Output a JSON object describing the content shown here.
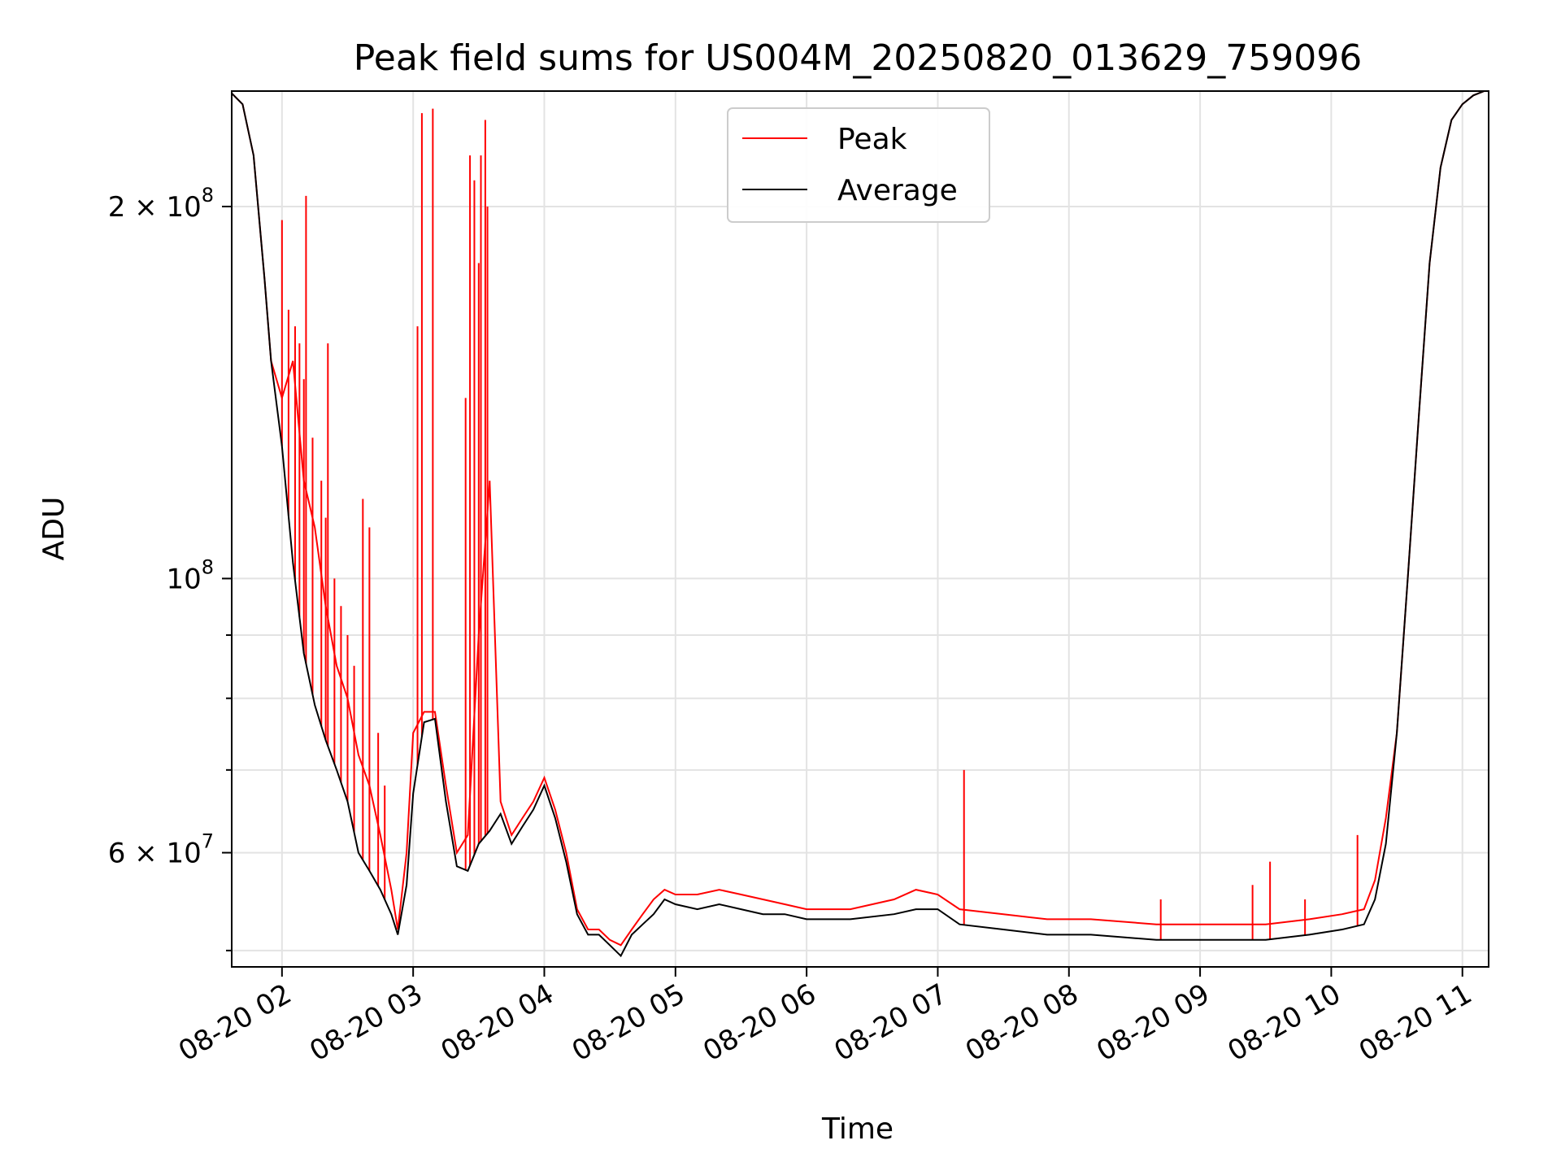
{
  "chart_data": {
    "type": "line",
    "title": "Peak field sums for US004M_20250820_013629_759096",
    "xlabel": "Time",
    "ylabel": "ADU",
    "y_scale": "log",
    "ylim": [
      48500000,
      248000000
    ],
    "xlim": [
      "2025-08-20 01:37",
      "2025-08-20 11:12"
    ],
    "grid": true,
    "legend_position": "upper center",
    "x_ticks": [
      {
        "value": "2025-08-20 02:00",
        "label": "08-20 02"
      },
      {
        "value": "2025-08-20 03:00",
        "label": "08-20 03"
      },
      {
        "value": "2025-08-20 04:00",
        "label": "08-20 04"
      },
      {
        "value": "2025-08-20 05:00",
        "label": "08-20 05"
      },
      {
        "value": "2025-08-20 06:00",
        "label": "08-20 06"
      },
      {
        "value": "2025-08-20 07:00",
        "label": "08-20 07"
      },
      {
        "value": "2025-08-20 08:00",
        "label": "08-20 08"
      },
      {
        "value": "2025-08-20 09:00",
        "label": "08-20 09"
      },
      {
        "value": "2025-08-20 10:00",
        "label": "08-20 10"
      },
      {
        "value": "2025-08-20 11:00",
        "label": "08-20 11"
      }
    ],
    "y_ticks": [
      {
        "value": 200000000,
        "base": "2 × 10",
        "exp": "8"
      },
      {
        "value": 100000000,
        "base": "10",
        "exp": "8"
      },
      {
        "value": 60000000,
        "base": "6 × 10",
        "exp": "7"
      }
    ],
    "y_minor_ticks": [
      50000000,
      70000000,
      80000000,
      90000000
    ],
    "series": [
      {
        "name": "Average",
        "color": "#000000",
        "x": [
          "2025-08-20 01:37",
          "2025-08-20 01:42",
          "2025-08-20 01:47",
          "2025-08-20 01:52",
          "2025-08-20 01:55",
          "2025-08-20 02:00",
          "2025-08-20 02:05",
          "2025-08-20 02:10",
          "2025-08-20 02:15",
          "2025-08-20 02:20",
          "2025-08-20 02:25",
          "2025-08-20 02:30",
          "2025-08-20 02:35",
          "2025-08-20 02:40",
          "2025-08-20 02:45",
          "2025-08-20 02:50",
          "2025-08-20 02:53",
          "2025-08-20 02:57",
          "2025-08-20 03:00",
          "2025-08-20 03:05",
          "2025-08-20 03:10",
          "2025-08-20 03:15",
          "2025-08-20 03:20",
          "2025-08-20 03:25",
          "2025-08-20 03:30",
          "2025-08-20 03:35",
          "2025-08-20 03:40",
          "2025-08-20 03:45",
          "2025-08-20 03:50",
          "2025-08-20 03:55",
          "2025-08-20 04:00",
          "2025-08-20 04:05",
          "2025-08-20 04:10",
          "2025-08-20 04:15",
          "2025-08-20 04:20",
          "2025-08-20 04:25",
          "2025-08-20 04:30",
          "2025-08-20 04:35",
          "2025-08-20 04:40",
          "2025-08-20 04:45",
          "2025-08-20 04:50",
          "2025-08-20 04:55",
          "2025-08-20 05:00",
          "2025-08-20 05:10",
          "2025-08-20 05:20",
          "2025-08-20 05:30",
          "2025-08-20 05:40",
          "2025-08-20 05:50",
          "2025-08-20 06:00",
          "2025-08-20 06:20",
          "2025-08-20 06:40",
          "2025-08-20 06:50",
          "2025-08-20 07:00",
          "2025-08-20 07:10",
          "2025-08-20 07:30",
          "2025-08-20 07:50",
          "2025-08-20 08:10",
          "2025-08-20 08:40",
          "2025-08-20 09:00",
          "2025-08-20 09:30",
          "2025-08-20 09:50",
          "2025-08-20 10:05",
          "2025-08-20 10:15",
          "2025-08-20 10:20",
          "2025-08-20 10:25",
          "2025-08-20 10:30",
          "2025-08-20 10:35",
          "2025-08-20 10:40",
          "2025-08-20 10:45",
          "2025-08-20 10:50",
          "2025-08-20 10:55",
          "2025-08-20 11:00",
          "2025-08-20 11:05",
          "2025-08-20 11:10"
        ],
        "y": [
          247000000,
          242000000,
          220000000,
          175000000,
          150000000,
          128000000,
          103000000,
          87000000,
          79000000,
          74000000,
          70000000,
          66000000,
          60000000,
          58000000,
          56000000,
          53500000,
          51500000,
          56500000,
          67000000,
          76500000,
          77000000,
          66000000,
          58500000,
          58000000,
          61000000,
          62500000,
          64500000,
          61000000,
          63000000,
          65000000,
          68000000,
          64000000,
          59000000,
          53500000,
          51500000,
          51500000,
          50500000,
          49500000,
          51500000,
          52500000,
          53500000,
          55000000,
          54500000,
          54000000,
          54500000,
          54000000,
          53500000,
          53500000,
          53000000,
          53000000,
          53500000,
          54000000,
          54000000,
          52500000,
          52000000,
          51500000,
          51500000,
          51000000,
          51000000,
          51000000,
          51500000,
          52000000,
          52500000,
          55000000,
          61000000,
          75000000,
          100000000,
          135000000,
          180000000,
          215000000,
          235000000,
          242000000,
          246000000,
          248000000
        ]
      },
      {
        "name": "Peak",
        "color": "#ff0000",
        "x": [
          "2025-08-20 01:37",
          "2025-08-20 01:42",
          "2025-08-20 01:47",
          "2025-08-20 01:52",
          "2025-08-20 01:55",
          "2025-08-20 02:00",
          "2025-08-20 02:05",
          "2025-08-20 02:10",
          "2025-08-20 02:15",
          "2025-08-20 02:20",
          "2025-08-20 02:25",
          "2025-08-20 02:30",
          "2025-08-20 02:35",
          "2025-08-20 02:40",
          "2025-08-20 02:45",
          "2025-08-20 02:50",
          "2025-08-20 02:53",
          "2025-08-20 02:57",
          "2025-08-20 03:00",
          "2025-08-20 03:05",
          "2025-08-20 03:10",
          "2025-08-20 03:15",
          "2025-08-20 03:20",
          "2025-08-20 03:25",
          "2025-08-20 03:30",
          "2025-08-20 03:35",
          "2025-08-20 03:40",
          "2025-08-20 03:45",
          "2025-08-20 03:50",
          "2025-08-20 03:55",
          "2025-08-20 04:00",
          "2025-08-20 04:05",
          "2025-08-20 04:10",
          "2025-08-20 04:15",
          "2025-08-20 04:20",
          "2025-08-20 04:25",
          "2025-08-20 04:30",
          "2025-08-20 04:35",
          "2025-08-20 04:40",
          "2025-08-20 04:45",
          "2025-08-20 04:50",
          "2025-08-20 04:55",
          "2025-08-20 05:00",
          "2025-08-20 05:10",
          "2025-08-20 05:20",
          "2025-08-20 05:30",
          "2025-08-20 05:40",
          "2025-08-20 05:50",
          "2025-08-20 06:00",
          "2025-08-20 06:20",
          "2025-08-20 06:40",
          "2025-08-20 06:50",
          "2025-08-20 07:00",
          "2025-08-20 07:10",
          "2025-08-20 07:30",
          "2025-08-20 07:50",
          "2025-08-20 08:10",
          "2025-08-20 08:40",
          "2025-08-20 09:00",
          "2025-08-20 09:30",
          "2025-08-20 09:50",
          "2025-08-20 10:05",
          "2025-08-20 10:15",
          "2025-08-20 10:20",
          "2025-08-20 10:25",
          "2025-08-20 10:30",
          "2025-08-20 10:35",
          "2025-08-20 10:40",
          "2025-08-20 10:45",
          "2025-08-20 10:50",
          "2025-08-20 10:55",
          "2025-08-20 11:00",
          "2025-08-20 11:05",
          "2025-08-20 11:10"
        ],
        "y": [
          247000000,
          242000000,
          220000000,
          175000000,
          150000000,
          140000000,
          150000000,
          120000000,
          110000000,
          95000000,
          85000000,
          80000000,
          72000000,
          68000000,
          62000000,
          56000000,
          52000000,
          60000000,
          75000000,
          78000000,
          78000000,
          68000000,
          60000000,
          62000000,
          90000000,
          120000000,
          66000000,
          62000000,
          64000000,
          66000000,
          69000000,
          65000000,
          60000000,
          54000000,
          52000000,
          52000000,
          51000000,
          50500000,
          52000000,
          53500000,
          55000000,
          56000000,
          55500000,
          55500000,
          56000000,
          55500000,
          55000000,
          54500000,
          54000000,
          54000000,
          55000000,
          56000000,
          55500000,
          54000000,
          53500000,
          53000000,
          53000000,
          52500000,
          52500000,
          52500000,
          53000000,
          53500000,
          54000000,
          57000000,
          64000000,
          75000000,
          100000000,
          135000000,
          180000000,
          215000000,
          235000000,
          242000000,
          246000000,
          248000000
        ]
      }
    ],
    "peak_spikes": [
      {
        "x": "2025-08-20 02:00",
        "y": 195000000
      },
      {
        "x": "2025-08-20 02:03",
        "y": 165000000
      },
      {
        "x": "2025-08-20 02:06",
        "y": 160000000
      },
      {
        "x": "2025-08-20 02:08",
        "y": 155000000
      },
      {
        "x": "2025-08-20 02:10",
        "y": 145000000
      },
      {
        "x": "2025-08-20 02:11",
        "y": 204000000
      },
      {
        "x": "2025-08-20 02:14",
        "y": 130000000
      },
      {
        "x": "2025-08-20 02:18",
        "y": 120000000
      },
      {
        "x": "2025-08-20 02:20",
        "y": 112000000
      },
      {
        "x": "2025-08-20 02:21",
        "y": 155000000
      },
      {
        "x": "2025-08-20 02:24",
        "y": 100000000
      },
      {
        "x": "2025-08-20 02:27",
        "y": 95000000
      },
      {
        "x": "2025-08-20 02:30",
        "y": 90000000
      },
      {
        "x": "2025-08-20 02:33",
        "y": 85000000
      },
      {
        "x": "2025-08-20 02:37",
        "y": 116000000
      },
      {
        "x": "2025-08-20 02:40",
        "y": 110000000
      },
      {
        "x": "2025-08-20 02:44",
        "y": 75000000
      },
      {
        "x": "2025-08-20 02:47",
        "y": 68000000
      },
      {
        "x": "2025-08-20 03:02",
        "y": 160000000
      },
      {
        "x": "2025-08-20 03:04",
        "y": 238000000
      },
      {
        "x": "2025-08-20 03:09",
        "y": 240000000
      },
      {
        "x": "2025-08-20 03:24",
        "y": 140000000
      },
      {
        "x": "2025-08-20 03:26",
        "y": 220000000
      },
      {
        "x": "2025-08-20 03:28",
        "y": 210000000
      },
      {
        "x": "2025-08-20 03:30",
        "y": 180000000
      },
      {
        "x": "2025-08-20 03:31",
        "y": 220000000
      },
      {
        "x": "2025-08-20 03:33",
        "y": 235000000
      },
      {
        "x": "2025-08-20 03:34",
        "y": 200000000
      },
      {
        "x": "2025-08-20 07:12",
        "y": 70000000
      },
      {
        "x": "2025-08-20 08:42",
        "y": 55000000
      },
      {
        "x": "2025-08-20 09:24",
        "y": 56500000
      },
      {
        "x": "2025-08-20 09:32",
        "y": 59000000
      },
      {
        "x": "2025-08-20 09:48",
        "y": 55000000
      },
      {
        "x": "2025-08-20 10:12",
        "y": 62000000
      }
    ],
    "legend": [
      {
        "label": "Peak",
        "color": "#ff0000"
      },
      {
        "label": "Average",
        "color": "#000000"
      }
    ]
  }
}
